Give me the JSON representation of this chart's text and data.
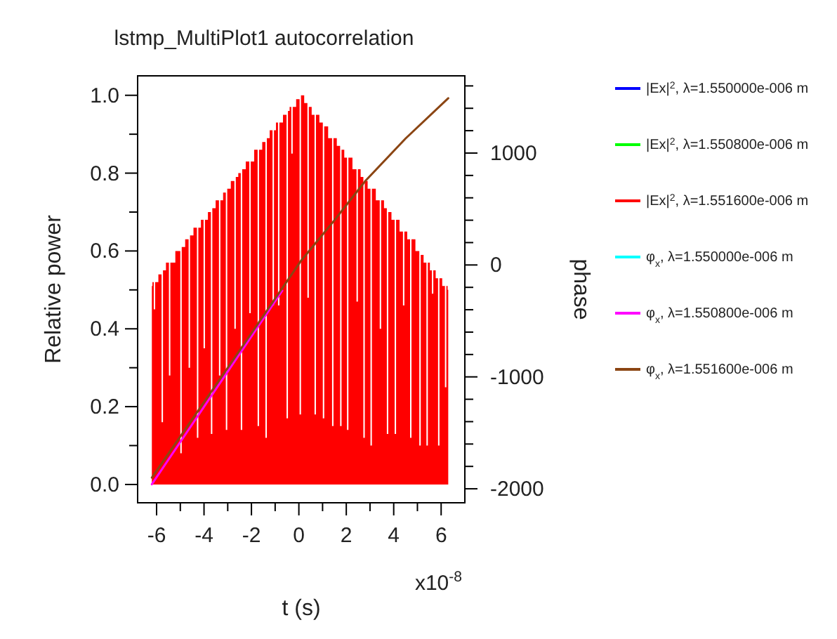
{
  "chart_data": {
    "type": "line",
    "title": "lstmp_MultiPlot1 autocorrelation",
    "xlabel": "t (s)",
    "ylabel": "Relative power",
    "y2label": "phase",
    "annotations": [
      "x10$^{-8}$"
    ],
    "xlim": [
      -6.8,
      7.0
    ],
    "xticks": [
      {
        "value": -6,
        "label": "-6"
      },
      {
        "value": -5,
        "label": null
      },
      {
        "value": -4,
        "label": "-4"
      },
      {
        "value": -3,
        "label": null
      },
      {
        "value": -2,
        "label": "-2"
      },
      {
        "value": -1,
        "label": null
      },
      0,
      {
        "value": 1,
        "label": null
      },
      2,
      {
        "value": 3,
        "label": null
      },
      4,
      {
        "value": 5,
        "label": null
      },
      6
    ],
    "ylim": [
      -0.047,
      1.05
    ],
    "yticks": [
      {
        "value": 0,
        "label": "0.0"
      },
      {
        "value": 0.1,
        "label": null
      },
      {
        "value": 0.2,
        "label": "0.2"
      },
      {
        "value": 0.3,
        "label": null
      },
      {
        "value": 0.4,
        "label": "0.4"
      },
      {
        "value": 0.5,
        "label": null
      },
      {
        "value": 0.6,
        "label": "0.6"
      },
      {
        "value": 0.7,
        "label": null
      },
      {
        "value": 0.8,
        "label": "0.8"
      },
      {
        "value": 0.9,
        "label": null
      },
      {
        "value": 1,
        "label": "1.0"
      }
    ],
    "y2lim": [
      -2125,
      1690
    ],
    "y2ticks": [
      {
        "value": -2000,
        "label": "-2000"
      },
      {
        "value": -1800,
        "label": null
      },
      {
        "value": -1600,
        "label": null
      },
      {
        "value": -1400,
        "label": null
      },
      {
        "value": -1200,
        "label": null
      },
      {
        "value": -1000,
        "label": "-1000"
      },
      {
        "value": -800,
        "label": null
      },
      {
        "value": -600,
        "label": null
      },
      {
        "value": -400,
        "label": null
      },
      {
        "value": -200,
        "label": null
      },
      0,
      {
        "value": 200,
        "label": null
      },
      {
        "value": 400,
        "label": null
      },
      {
        "value": 600,
        "label": null
      },
      {
        "value": 800,
        "label": null
      },
      1000,
      {
        "value": 1200,
        "label": null
      },
      {
        "value": 1400,
        "label": null
      },
      {
        "value": 1600,
        "label": null
      }
    ],
    "legend": "right",
    "series": [
      {
        "name": "|Ex|$^{2}$, λ=1.550000e-006 m",
        "color": "#0000ff",
        "type": "area"
      },
      {
        "name": "|Ex|$^{2}$, λ=1.550800e-006 m",
        "color": "#00ff00",
        "type": "area"
      },
      {
        "name": "|Ex|$^{2}$, λ=1.551600e-006 m",
        "color": "#ff0000",
        "type": "area",
        "x": [
          -6.2,
          -6.15,
          -6.09,
          -6.03,
          -5.82,
          -5.76,
          -5.7,
          -5.51,
          -5.45,
          -5.39,
          -5.03,
          -4.97,
          -4.91,
          -4.68,
          -4.62,
          -4.56,
          -4.33,
          -4.27,
          -4.21,
          -4.05,
          -3.99,
          -3.93,
          -3.74,
          -3.68,
          -3.62,
          -3.4,
          -3.34,
          -3.28,
          -3.11,
          -3.05,
          -2.99,
          -2.75,
          -2.69,
          -2.63,
          -2.48,
          -2.42,
          -2.36,
          -2.12,
          -2.06,
          -2.0,
          -1.77,
          -1.71,
          -1.65,
          -1.44,
          -1.38,
          -1.32,
          -1.14,
          -1.08,
          -1.02,
          -0.91,
          -0.85,
          -0.79,
          -0.55,
          -0.49,
          -0.43,
          -0.35,
          -0.29,
          -0.23,
          0.0,
          0.06,
          0.12,
          0.33,
          0.39,
          0.45,
          0.63,
          0.69,
          0.75,
          0.98,
          1.04,
          1.1,
          1.37,
          1.43,
          1.49,
          1.71,
          1.77,
          1.83,
          2.0,
          2.06,
          2.12,
          2.4,
          2.46,
          2.52,
          2.69,
          2.75,
          2.81,
          2.99,
          3.05,
          3.11,
          3.38,
          3.44,
          3.5,
          3.68,
          3.74,
          3.8,
          4.01,
          4.07,
          4.13,
          4.36,
          4.42,
          4.48,
          4.66,
          4.72,
          4.78,
          5.05,
          5.11,
          5.17,
          5.35,
          5.41,
          5.47,
          5.58,
          5.64,
          5.7,
          5.84,
          5.9,
          5.96,
          6.13,
          6.19,
          6.25,
          6.3
        ],
        "values": [
          0.51,
          0.52,
          0.45,
          0.52,
          0.54,
          0.16,
          0.55,
          0.57,
          0.28,
          0.57,
          0.6,
          0.08,
          0.61,
          0.63,
          0.3,
          0.64,
          0.66,
          0.12,
          0.66,
          0.68,
          0.35,
          0.68,
          0.7,
          0.13,
          0.71,
          0.73,
          0.28,
          0.73,
          0.75,
          0.14,
          0.76,
          0.78,
          0.4,
          0.79,
          0.8,
          0.14,
          0.81,
          0.83,
          0.44,
          0.83,
          0.86,
          0.15,
          0.86,
          0.88,
          0.12,
          0.89,
          0.91,
          0.46,
          0.91,
          0.93,
          0.46,
          0.93,
          0.95,
          0.17,
          0.96,
          0.97,
          0.85,
          0.97,
          0.99,
          0.18,
          1.0,
          0.98,
          0.48,
          0.97,
          0.95,
          0.18,
          0.95,
          0.93,
          0.17,
          0.92,
          0.89,
          0.15,
          0.89,
          0.87,
          0.15,
          0.86,
          0.84,
          0.14,
          0.84,
          0.81,
          0.47,
          0.81,
          0.79,
          0.12,
          0.78,
          0.76,
          0.1,
          0.76,
          0.73,
          0.4,
          0.73,
          0.71,
          0.13,
          0.7,
          0.68,
          0.13,
          0.68,
          0.65,
          0.46,
          0.65,
          0.63,
          0.12,
          0.63,
          0.6,
          0.1,
          0.59,
          0.57,
          0.1,
          0.57,
          0.55,
          0.49,
          0.55,
          0.53,
          0.1,
          0.53,
          0.51,
          0.25,
          0.51,
          0.5
        ]
      },
      {
        "name": "φ$_{x}$, λ=1.550000e-006 m",
        "color": "#00ffff",
        "axis": "y2"
      },
      {
        "name": "φ$_{x}$, λ=1.550800e-006 m",
        "color": "#ff00ff",
        "axis": "y2",
        "x": [
          -6.2,
          -3.5,
          -0.7
        ],
        "values": [
          -1960,
          -1110,
          -230
        ]
      },
      {
        "name": "φ$_{x}$, λ=1.551600e-006 m",
        "color": "#8b4513",
        "axis": "y2",
        "x": [
          -6.2,
          -3.0,
          0.1,
          1.5,
          2.8,
          4.5,
          6.3
        ],
        "values": [
          -1900,
          -920,
          40,
          400,
          750,
          1130,
          1490
        ]
      }
    ]
  }
}
